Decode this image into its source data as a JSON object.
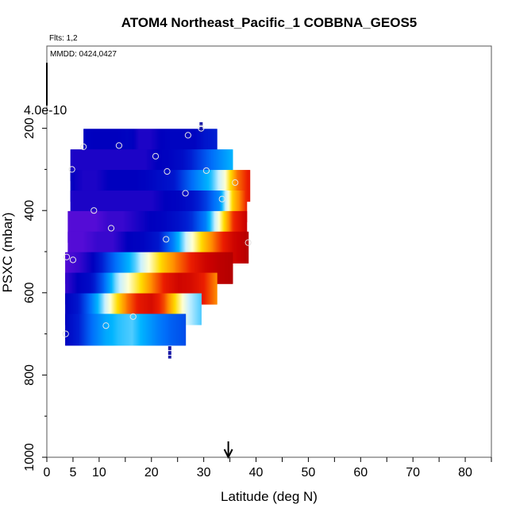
{
  "chart_data": {
    "type": "heatmap",
    "title": "ATOM4 Northeast_Pacific_1 COBBNA_GEOS5",
    "annotations": {
      "flights": "Flts: 1,2",
      "dates": "MMDD: 0424,0427"
    },
    "colorbar_label": "4.0e-10",
    "xlabel": "Latitude (deg N)",
    "ylabel": "PSXC (mbar)",
    "xlim": [
      0,
      85
    ],
    "ylim": [
      1000,
      0
    ],
    "y_reversed": true,
    "x_ticks": [
      0,
      5,
      10,
      20,
      30,
      40,
      50,
      60,
      70,
      80
    ],
    "y_ticks": [
      200,
      400,
      600,
      800,
      1000
    ],
    "grid": false,
    "arrow_marker_latitude": 34.7,
    "rows": [
      {
        "p": 240,
        "lat_start": 7.0,
        "lat_end": 32.5,
        "values": [
          0.06,
          0.05,
          0.05,
          0.05,
          0.06,
          0.04,
          0.04,
          0.05,
          0.06,
          0.06,
          0.06,
          0.1,
          0.12
        ]
      },
      {
        "p": 290,
        "lat_start": 4.5,
        "lat_end": 35.5,
        "values": [
          0.04,
          0.04,
          0.04,
          0.04,
          0.04,
          0.04,
          0.04,
          0.05,
          0.06,
          0.08,
          0.14,
          0.2,
          0.26,
          0.32
        ]
      },
      {
        "p": 340,
        "lat_start": 4.5,
        "lat_end": 38.8,
        "values": [
          0.05,
          0.04,
          0.04,
          0.05,
          0.05,
          0.05,
          0.06,
          0.08,
          0.1,
          0.18,
          0.26,
          0.34,
          0.48,
          0.72,
          0.82
        ]
      },
      {
        "p": 390,
        "lat_start": 4.5,
        "lat_end": 38.2,
        "values": [
          0.04,
          0.04,
          0.04,
          0.04,
          0.04,
          0.04,
          0.04,
          0.05,
          0.06,
          0.09,
          0.16,
          0.26,
          0.62,
          0.8
        ]
      },
      {
        "p": 440,
        "lat_start": 4.0,
        "lat_end": 38.2,
        "values": [
          0.02,
          0.02,
          0.02,
          0.03,
          0.03,
          0.04,
          0.05,
          0.06,
          0.09,
          0.14,
          0.24,
          0.5,
          0.78,
          0.9
        ]
      },
      {
        "p": 490,
        "lat_start": 4.0,
        "lat_end": 38.5,
        "values": [
          0.02,
          0.02,
          0.03,
          0.03,
          0.05,
          0.06,
          0.1,
          0.24,
          0.45,
          0.62,
          0.76,
          0.88,
          0.94
        ]
      },
      {
        "p": 540,
        "lat_start": 3.5,
        "lat_end": 35.5,
        "values": [
          0.02,
          0.03,
          0.05,
          0.16,
          0.26,
          0.36,
          0.5,
          0.62,
          0.72,
          0.8,
          0.88,
          0.92,
          0.94
        ]
      },
      {
        "p": 590,
        "lat_start": 3.5,
        "lat_end": 32.5,
        "values": [
          0.03,
          0.05,
          0.08,
          0.2,
          0.38,
          0.5,
          0.6,
          0.72,
          0.82,
          0.88,
          0.86,
          0.8,
          0.7
        ]
      },
      {
        "p": 640,
        "lat_start": 3.5,
        "lat_end": 29.5,
        "values": [
          0.05,
          0.1,
          0.22,
          0.38,
          0.56,
          0.72,
          0.82,
          0.86,
          0.76,
          0.58,
          0.42,
          0.36
        ]
      },
      {
        "p": 690,
        "lat_start": 3.5,
        "lat_end": 26.5,
        "values": [
          0.06,
          0.12,
          0.22,
          0.3,
          0.34,
          0.36,
          0.3,
          0.24,
          0.2,
          0.18
        ]
      }
    ],
    "points": [
      {
        "lat": 7.0,
        "p": 245
      },
      {
        "lat": 13.8,
        "p": 242
      },
      {
        "lat": 27.0,
        "p": 217
      },
      {
        "lat": 29.5,
        "p": 200
      },
      {
        "lat": 20.8,
        "p": 268
      },
      {
        "lat": 4.8,
        "p": 300
      },
      {
        "lat": 23.0,
        "p": 305
      },
      {
        "lat": 30.5,
        "p": 303
      },
      {
        "lat": 36.0,
        "p": 332
      },
      {
        "lat": 26.5,
        "p": 358
      },
      {
        "lat": 33.5,
        "p": 372
      },
      {
        "lat": 9.0,
        "p": 400
      },
      {
        "lat": 12.3,
        "p": 443
      },
      {
        "lat": 22.8,
        "p": 470
      },
      {
        "lat": 38.5,
        "p": 478
      },
      {
        "lat": 3.8,
        "p": 513
      },
      {
        "lat": 5.0,
        "p": 520
      },
      {
        "lat": 16.5,
        "p": 658
      },
      {
        "lat": 11.3,
        "p": 680
      },
      {
        "lat": 3.6,
        "p": 700
      }
    ],
    "vertical_marks": [
      {
        "lat": 29.5,
        "p_from": 185,
        "p_to": 210
      },
      {
        "lat": 23.5,
        "p_from": 730,
        "p_to": 760
      }
    ]
  }
}
